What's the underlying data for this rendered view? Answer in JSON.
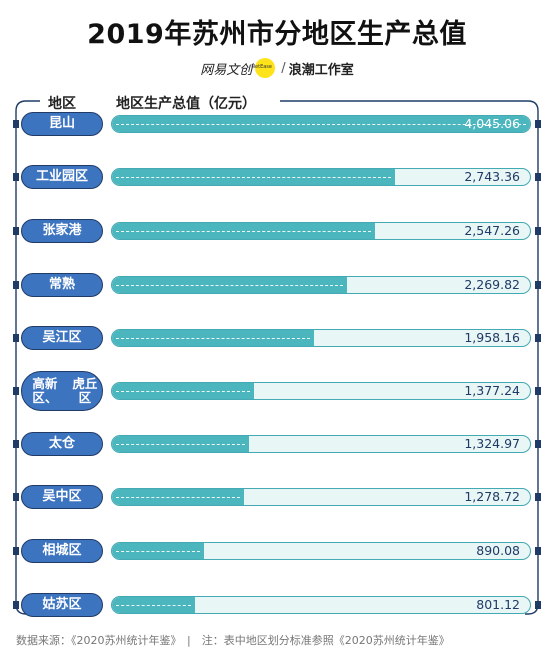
{
  "chart_data": {
    "type": "bar",
    "title": "2019年苏州市分地区生产总值",
    "brand_left": "网易文创",
    "brand_sep": "/",
    "brand_right": "浪潮工作室",
    "category_header": "地区",
    "value_header": "地区生产总值（亿元）",
    "categories": [
      "昆山",
      "工业园区",
      "张家港",
      "常熟",
      "吴江区",
      "高新区、虎丘区",
      "太仓",
      "吴中区",
      "相城区",
      "姑苏区"
    ],
    "values": [
      4045.06,
      2743.36,
      2547.26,
      2269.82,
      1958.16,
      1377.24,
      1324.97,
      1278.72,
      890.08,
      801.12
    ],
    "value_labels": [
      "4,045.06",
      "2,743.36",
      "2,547.26",
      "2,269.82",
      "1,958.16",
      "1,377.24",
      "1,324.97",
      "1,278.72",
      "890.08",
      "801.12"
    ],
    "xlim": [
      0,
      4045.06
    ],
    "colors": {
      "fill": "#4cb6bf",
      "track": "#e9f6f6",
      "border": "#43a9b2",
      "category": "#3d74c0",
      "frame": "#1f3b66"
    },
    "footer": "数据来源：《2020苏州统计年鉴》　|　注：表中地区划分标准参照《2020苏州统计年鉴》"
  }
}
